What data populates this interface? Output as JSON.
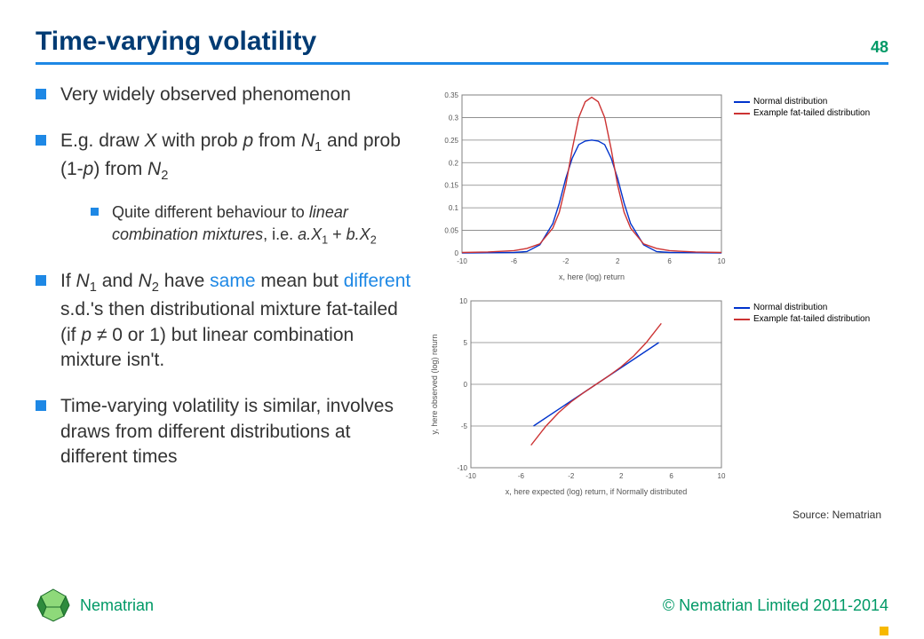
{
  "header": {
    "title": "Time-varying volatility",
    "title_color": "#003b73",
    "rule_color": "#1e88e5",
    "page_number": "48",
    "page_number_color": "#009966"
  },
  "bullets": {
    "marker_color": "#1e88e5",
    "highlight_color": "#1e88e5",
    "items": [
      {
        "html": "Very widely observed phenomenon"
      },
      {
        "html": "E.g. draw <em class='it'>X</em> with prob <em class='it'>p</em> from <em class='it'>N</em><sub>1</sub> and prob (1-<em class='it'>p</em>) from <em class='it'>N</em><sub>2</sub>",
        "sub": [
          {
            "html": "Quite different behaviour to <em class='it'>linear combination mixtures</em>, i.e. <em class='it'>a.X</em><sub>1</sub> + <em class='it'>b.X</em><sub>2</sub>"
          }
        ]
      },
      {
        "html": "If <em class='it'>N</em><sub>1</sub> and <em class='it'>N</em><sub>2</sub> have <span class='hl'>same</span> mean but <span class='hl'>different</span> s.d.'s then distributional mixture fat-tailed (if <em class='it'>p</em> ≠ 0 or 1) but linear combination mixture isn't."
      },
      {
        "html": "Time-varying volatility is similar, involves draws from different distributions at different times"
      }
    ]
  },
  "charts": {
    "axis_color": "#808080",
    "grid_color": "#808080",
    "bg_color": "#ffffff",
    "label_fontsize": 9,
    "axis_fontsize": 8,
    "series": {
      "normal": {
        "label": "Normal distribution",
        "color": "#0033cc",
        "width": 1.4
      },
      "fat": {
        "label": "Example fat-tailed distribution",
        "color": "#cc3333",
        "width": 1.4
      }
    },
    "pdf": {
      "xlabel": "x, here (log) return",
      "xlim": [
        -10,
        10
      ],
      "xticks": [
        -10,
        -6,
        -2,
        2,
        6,
        10
      ],
      "ylim": [
        0,
        0.35
      ],
      "yticks": [
        0,
        0.05,
        0.1,
        0.15,
        0.2,
        0.25,
        0.3,
        0.35
      ],
      "normal_points": [
        [
          -10,
          0
        ],
        [
          -6,
          0.001
        ],
        [
          -5,
          0.003
        ],
        [
          -4,
          0.018
        ],
        [
          -3,
          0.065
        ],
        [
          -2.5,
          0.11
        ],
        [
          -2,
          0.165
        ],
        [
          -1.5,
          0.21
        ],
        [
          -1,
          0.24
        ],
        [
          -0.5,
          0.248
        ],
        [
          0,
          0.25
        ],
        [
          0.5,
          0.248
        ],
        [
          1,
          0.24
        ],
        [
          1.5,
          0.21
        ],
        [
          2,
          0.165
        ],
        [
          2.5,
          0.11
        ],
        [
          3,
          0.065
        ],
        [
          4,
          0.018
        ],
        [
          5,
          0.003
        ],
        [
          6,
          0.001
        ],
        [
          10,
          0
        ]
      ],
      "fat_points": [
        [
          -10,
          0.001
        ],
        [
          -8,
          0.002
        ],
        [
          -6,
          0.005
        ],
        [
          -5,
          0.01
        ],
        [
          -4,
          0.02
        ],
        [
          -3,
          0.055
        ],
        [
          -2.5,
          0.09
        ],
        [
          -2,
          0.15
        ],
        [
          -1.5,
          0.23
        ],
        [
          -1,
          0.3
        ],
        [
          -0.5,
          0.335
        ],
        [
          0,
          0.345
        ],
        [
          0.5,
          0.335
        ],
        [
          1,
          0.3
        ],
        [
          1.5,
          0.23
        ],
        [
          2,
          0.15
        ],
        [
          2.5,
          0.09
        ],
        [
          3,
          0.055
        ],
        [
          4,
          0.02
        ],
        [
          5,
          0.01
        ],
        [
          6,
          0.005
        ],
        [
          8,
          0.002
        ],
        [
          10,
          0.001
        ]
      ]
    },
    "qq": {
      "xlabel": "x, here expected (log) return, if Normally distributed",
      "ylabel": "y, here observed (log) return",
      "xlim": [
        -10,
        10
      ],
      "xticks": [
        -10,
        -6,
        -2,
        2,
        6,
        10
      ],
      "ylim": [
        -10,
        10
      ],
      "yticks": [
        -10,
        -5,
        0,
        5,
        10
      ],
      "normal_points": [
        [
          -5,
          -5
        ],
        [
          5,
          5
        ]
      ],
      "fat_points": [
        [
          -5.2,
          -7.3
        ],
        [
          -4,
          -5
        ],
        [
          -3,
          -3.4
        ],
        [
          -2,
          -2.1
        ],
        [
          -1,
          -1
        ],
        [
          0,
          0
        ],
        [
          1,
          1
        ],
        [
          2,
          2.1
        ],
        [
          3,
          3.4
        ],
        [
          4,
          5
        ],
        [
          5.2,
          7.3
        ]
      ]
    },
    "source": "Source: Nematrian"
  },
  "footer": {
    "brand": "Nematrian",
    "brand_color": "#009966",
    "copyright": "© Nematrian Limited 2011-2014",
    "copyright_color": "#009966",
    "logo": {
      "fill_light": "#8ed97a",
      "fill_dark": "#2e8b3d",
      "stroke": "#1a6b2a"
    }
  }
}
